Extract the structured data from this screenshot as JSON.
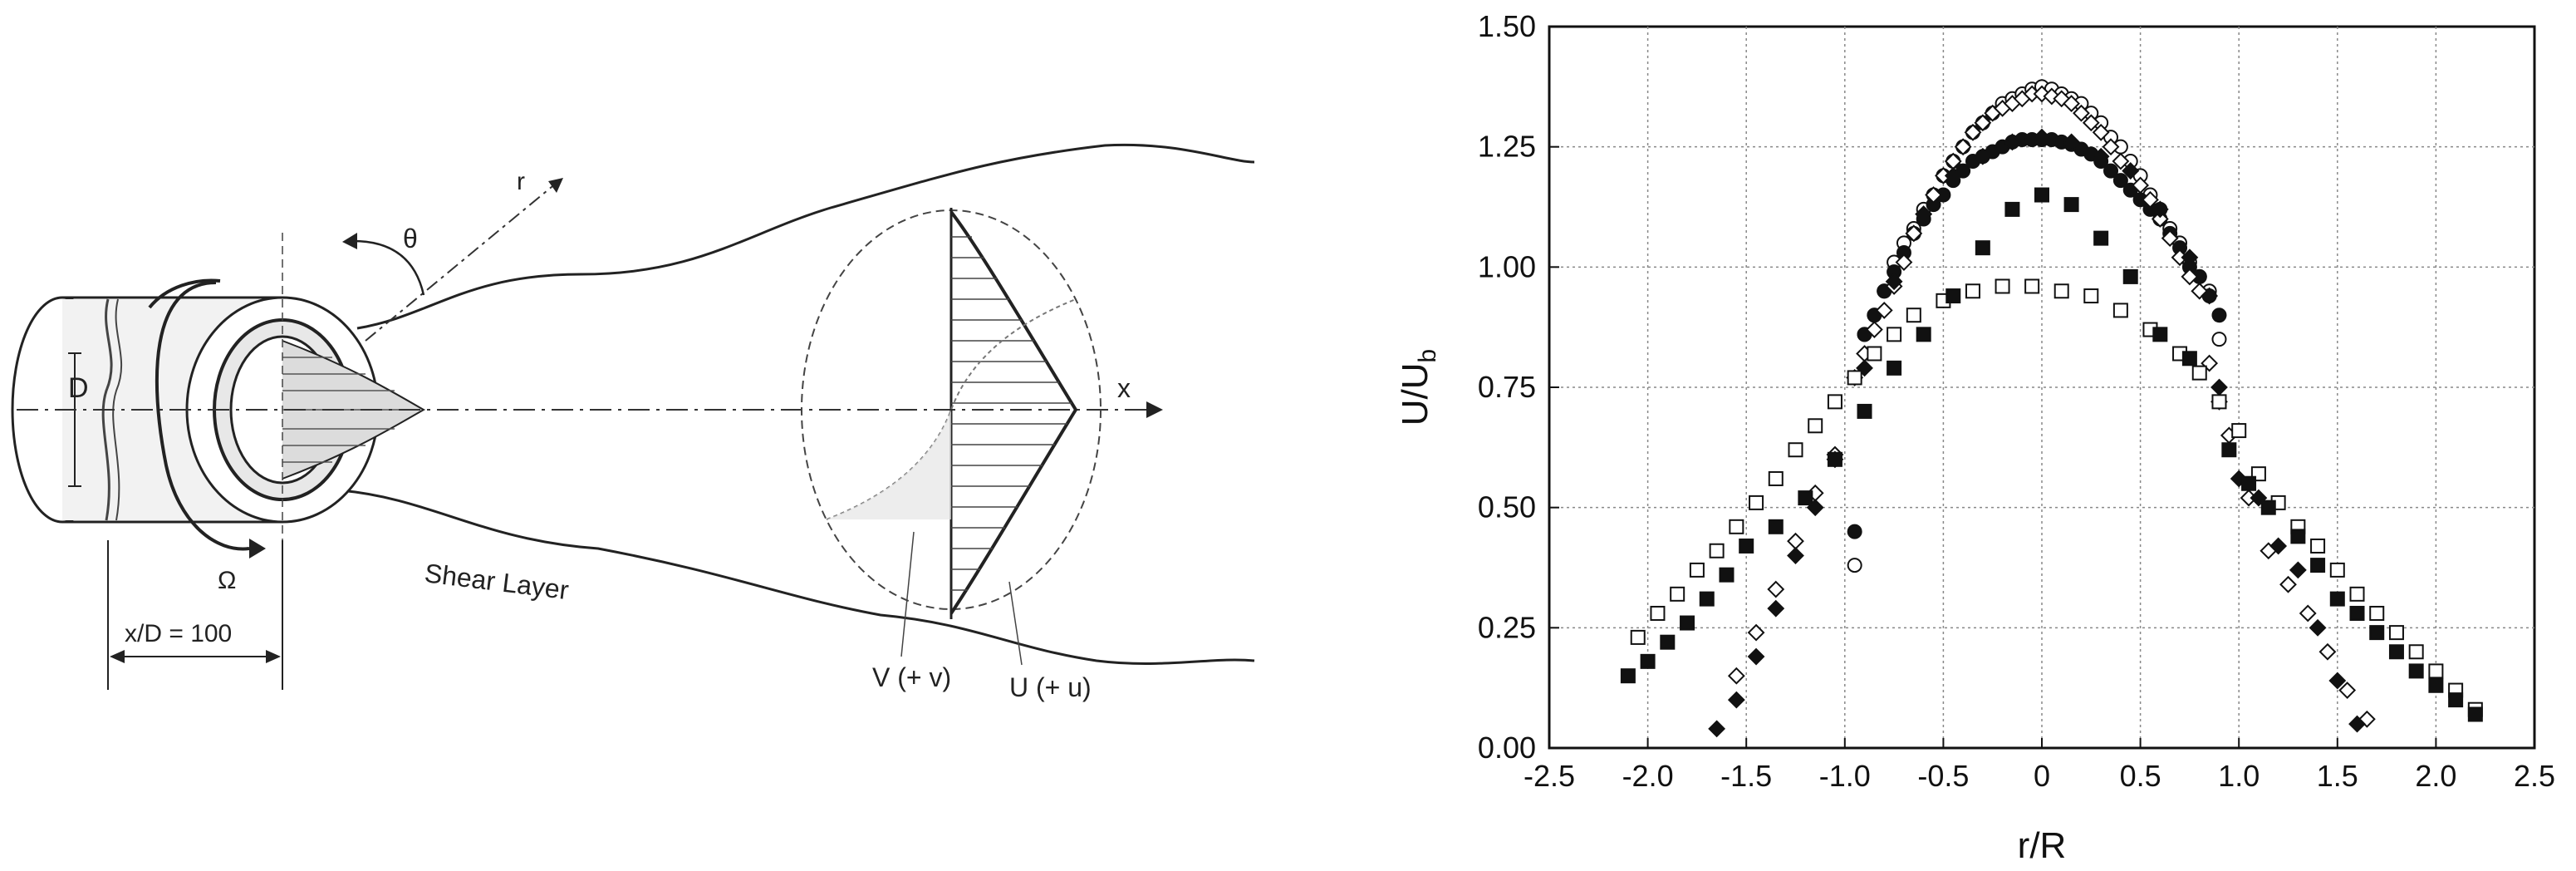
{
  "diagram": {
    "labels": {
      "D": "D",
      "theta": "θ",
      "r": "r",
      "x": "x",
      "omega": "Ω",
      "shear_layer": "Shear Layer",
      "xd": "x/D = 100",
      "v": "V (+ v)",
      "u": "U (+ u)"
    }
  },
  "chart_data": {
    "type": "scatter",
    "title": "",
    "xlabel": "r/R",
    "ylabel_main": "U/U",
    "ylabel_sub": "b",
    "xlim": [
      -2.5,
      2.5
    ],
    "ylim": [
      0,
      1.5
    ],
    "xticks": [
      -2.5,
      -2.0,
      -1.5,
      -1.0,
      -0.5,
      0,
      0.5,
      1.0,
      1.5,
      2.0,
      2.5
    ],
    "xtick_labels": [
      "-2.5",
      "-2.0",
      "-1.5",
      "-1.0",
      "-0.5",
      "0",
      "0.5",
      "1.0",
      "1.5",
      "2.0",
      "2.5"
    ],
    "yticks": [
      0,
      0.25,
      0.5,
      0.75,
      1.0,
      1.25,
      1.5
    ],
    "ytick_labels": [
      "0.00",
      "0.25",
      "0.50",
      "0.75",
      "1.00",
      "1.25",
      "1.50"
    ],
    "grid": true,
    "series": [
      {
        "marker": "open-circle",
        "points": [
          [
            -0.95,
            0.38
          ],
          [
            -0.9,
            0.86
          ],
          [
            -0.85,
            0.9
          ],
          [
            -0.8,
            0.95
          ],
          [
            -0.75,
            1.01
          ],
          [
            -0.7,
            1.05
          ],
          [
            -0.65,
            1.08
          ],
          [
            -0.6,
            1.12
          ],
          [
            -0.55,
            1.15
          ],
          [
            -0.5,
            1.19
          ],
          [
            -0.45,
            1.22
          ],
          [
            -0.4,
            1.25
          ],
          [
            -0.35,
            1.28
          ],
          [
            -0.3,
            1.3
          ],
          [
            -0.25,
            1.32
          ],
          [
            -0.2,
            1.34
          ],
          [
            -0.15,
            1.35
          ],
          [
            -0.1,
            1.36
          ],
          [
            -0.05,
            1.37
          ],
          [
            0,
            1.375
          ],
          [
            0.05,
            1.37
          ],
          [
            0.1,
            1.36
          ],
          [
            0.15,
            1.35
          ],
          [
            0.2,
            1.34
          ],
          [
            0.25,
            1.32
          ],
          [
            0.3,
            1.3
          ],
          [
            0.35,
            1.27
          ],
          [
            0.4,
            1.25
          ],
          [
            0.45,
            1.22
          ],
          [
            0.5,
            1.19
          ],
          [
            0.55,
            1.15
          ],
          [
            0.6,
            1.12
          ],
          [
            0.65,
            1.08
          ],
          [
            0.7,
            1.05
          ],
          [
            0.75,
            1.01
          ],
          [
            0.8,
            0.98
          ],
          [
            0.85,
            0.95
          ],
          [
            0.9,
            0.85
          ]
        ]
      },
      {
        "marker": "filled-circle",
        "points": [
          [
            -0.95,
            0.45
          ],
          [
            -0.9,
            0.86
          ],
          [
            -0.85,
            0.9
          ],
          [
            -0.8,
            0.95
          ],
          [
            -0.75,
            0.99
          ],
          [
            -0.7,
            1.03
          ],
          [
            -0.65,
            1.07
          ],
          [
            -0.6,
            1.1
          ],
          [
            -0.55,
            1.13
          ],
          [
            -0.5,
            1.15
          ],
          [
            -0.45,
            1.18
          ],
          [
            -0.4,
            1.2
          ],
          [
            -0.35,
            1.22
          ],
          [
            -0.3,
            1.23
          ],
          [
            -0.25,
            1.24
          ],
          [
            -0.2,
            1.25
          ],
          [
            -0.15,
            1.26
          ],
          [
            -0.1,
            1.265
          ],
          [
            -0.05,
            1.265
          ],
          [
            0,
            1.265
          ],
          [
            0.05,
            1.265
          ],
          [
            0.1,
            1.26
          ],
          [
            0.15,
            1.255
          ],
          [
            0.2,
            1.245
          ],
          [
            0.25,
            1.235
          ],
          [
            0.3,
            1.22
          ],
          [
            0.35,
            1.2
          ],
          [
            0.4,
            1.18
          ],
          [
            0.45,
            1.16
          ],
          [
            0.5,
            1.14
          ],
          [
            0.55,
            1.12
          ],
          [
            0.6,
            1.1
          ],
          [
            0.65,
            1.07
          ],
          [
            0.7,
            1.04
          ],
          [
            0.75,
            1.0
          ],
          [
            0.8,
            0.98
          ],
          [
            0.85,
            0.94
          ],
          [
            0.9,
            0.9
          ]
        ]
      },
      {
        "marker": "open-diamond",
        "points": [
          [
            -1.55,
            0.15
          ],
          [
            -1.45,
            0.24
          ],
          [
            -1.35,
            0.33
          ],
          [
            -1.25,
            0.43
          ],
          [
            -1.15,
            0.53
          ],
          [
            -1.05,
            0.61
          ],
          [
            -0.95,
            0.77
          ],
          [
            -0.9,
            0.82
          ],
          [
            -0.85,
            0.87
          ],
          [
            -0.8,
            0.91
          ],
          [
            -0.75,
            0.96
          ],
          [
            -0.7,
            1.01
          ],
          [
            -0.65,
            1.07
          ],
          [
            -0.6,
            1.11
          ],
          [
            -0.55,
            1.15
          ],
          [
            -0.5,
            1.19
          ],
          [
            -0.45,
            1.22
          ],
          [
            -0.4,
            1.25
          ],
          [
            -0.35,
            1.28
          ],
          [
            -0.3,
            1.3
          ],
          [
            -0.25,
            1.32
          ],
          [
            -0.2,
            1.33
          ],
          [
            -0.15,
            1.34
          ],
          [
            -0.1,
            1.35
          ],
          [
            -0.05,
            1.36
          ],
          [
            0,
            1.36
          ],
          [
            0.05,
            1.355
          ],
          [
            0.1,
            1.35
          ],
          [
            0.15,
            1.34
          ],
          [
            0.2,
            1.32
          ],
          [
            0.25,
            1.3
          ],
          [
            0.3,
            1.28
          ],
          [
            0.35,
            1.25
          ],
          [
            0.4,
            1.22
          ],
          [
            0.45,
            1.2
          ],
          [
            0.5,
            1.17
          ],
          [
            0.55,
            1.14
          ],
          [
            0.6,
            1.1
          ],
          [
            0.65,
            1.06
          ],
          [
            0.7,
            1.02
          ],
          [
            0.75,
            0.98
          ],
          [
            0.8,
            0.95
          ],
          [
            0.85,
            0.8
          ],
          [
            0.9,
            0.72
          ],
          [
            0.95,
            0.65
          ],
          [
            1.05,
            0.52
          ],
          [
            1.15,
            0.41
          ],
          [
            1.25,
            0.34
          ],
          [
            1.35,
            0.28
          ],
          [
            1.45,
            0.2
          ],
          [
            1.55,
            0.12
          ],
          [
            1.65,
            0.06
          ]
        ]
      },
      {
        "marker": "filled-diamond",
        "points": [
          [
            -1.65,
            0.04
          ],
          [
            -1.55,
            0.1
          ],
          [
            -1.45,
            0.19
          ],
          [
            -1.35,
            0.29
          ],
          [
            -1.25,
            0.4
          ],
          [
            -1.15,
            0.5
          ],
          [
            -1.05,
            0.6
          ],
          [
            -0.9,
            0.79
          ],
          [
            -0.75,
            0.97
          ],
          [
            -0.6,
            1.11
          ],
          [
            -0.45,
            1.19
          ],
          [
            -0.3,
            1.23
          ],
          [
            -0.15,
            1.26
          ],
          [
            0,
            1.27
          ],
          [
            0.15,
            1.26
          ],
          [
            0.3,
            1.23
          ],
          [
            0.45,
            1.2
          ],
          [
            0.6,
            1.12
          ],
          [
            0.75,
            1.02
          ],
          [
            0.85,
            0.94
          ],
          [
            0.9,
            0.75
          ],
          [
            1.0,
            0.56
          ],
          [
            1.1,
            0.52
          ],
          [
            1.2,
            0.42
          ],
          [
            1.3,
            0.37
          ],
          [
            1.4,
            0.25
          ],
          [
            1.5,
            0.14
          ],
          [
            1.6,
            0.05
          ]
        ]
      },
      {
        "marker": "open-square",
        "points": [
          [
            -2.05,
            0.23
          ],
          [
            -1.95,
            0.28
          ],
          [
            -1.85,
            0.32
          ],
          [
            -1.75,
            0.37
          ],
          [
            -1.65,
            0.41
          ],
          [
            -1.55,
            0.46
          ],
          [
            -1.45,
            0.51
          ],
          [
            -1.35,
            0.56
          ],
          [
            -1.25,
            0.62
          ],
          [
            -1.15,
            0.67
          ],
          [
            -1.05,
            0.72
          ],
          [
            -0.95,
            0.77
          ],
          [
            -0.85,
            0.82
          ],
          [
            -0.75,
            0.86
          ],
          [
            -0.65,
            0.9
          ],
          [
            -0.5,
            0.93
          ],
          [
            -0.35,
            0.95
          ],
          [
            -0.2,
            0.96
          ],
          [
            -0.05,
            0.96
          ],
          [
            0.1,
            0.95
          ],
          [
            0.25,
            0.94
          ],
          [
            0.4,
            0.91
          ],
          [
            0.55,
            0.87
          ],
          [
            0.7,
            0.82
          ],
          [
            0.8,
            0.78
          ],
          [
            0.9,
            0.72
          ],
          [
            1.0,
            0.66
          ],
          [
            1.1,
            0.57
          ],
          [
            1.2,
            0.51
          ],
          [
            1.3,
            0.46
          ],
          [
            1.4,
            0.42
          ],
          [
            1.5,
            0.37
          ],
          [
            1.6,
            0.32
          ],
          [
            1.7,
            0.28
          ],
          [
            1.8,
            0.24
          ],
          [
            1.9,
            0.2
          ],
          [
            2.0,
            0.16
          ],
          [
            2.1,
            0.12
          ],
          [
            2.2,
            0.08
          ]
        ]
      },
      {
        "marker": "filled-square",
        "points": [
          [
            -2.1,
            0.15
          ],
          [
            -2.0,
            0.18
          ],
          [
            -1.9,
            0.22
          ],
          [
            -1.8,
            0.26
          ],
          [
            -1.7,
            0.31
          ],
          [
            -1.6,
            0.36
          ],
          [
            -1.5,
            0.42
          ],
          [
            -1.35,
            0.46
          ],
          [
            -1.2,
            0.52
          ],
          [
            -1.05,
            0.6
          ],
          [
            -0.9,
            0.7
          ],
          [
            -0.75,
            0.79
          ],
          [
            -0.6,
            0.86
          ],
          [
            -0.45,
            0.94
          ],
          [
            -0.3,
            1.04
          ],
          [
            -0.15,
            1.12
          ],
          [
            0,
            1.15
          ],
          [
            0.15,
            1.13
          ],
          [
            0.3,
            1.06
          ],
          [
            0.45,
            0.98
          ],
          [
            0.6,
            0.86
          ],
          [
            0.75,
            0.81
          ],
          [
            0.95,
            0.62
          ],
          [
            1.05,
            0.55
          ],
          [
            1.15,
            0.5
          ],
          [
            1.3,
            0.44
          ],
          [
            1.4,
            0.38
          ],
          [
            1.5,
            0.31
          ],
          [
            1.6,
            0.28
          ],
          [
            1.7,
            0.24
          ],
          [
            1.8,
            0.2
          ],
          [
            1.9,
            0.16
          ],
          [
            2.0,
            0.13
          ],
          [
            2.1,
            0.1
          ],
          [
            2.2,
            0.07
          ]
        ]
      }
    ]
  }
}
